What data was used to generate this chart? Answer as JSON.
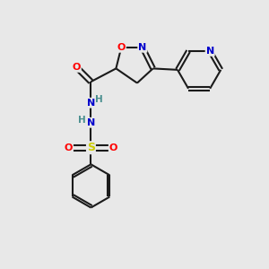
{
  "background_color": "#e8e8e8",
  "bond_color": "#1a1a1a",
  "atom_colors": {
    "O": "#ff0000",
    "N": "#0000cc",
    "S": "#cccc00",
    "C": "#1a1a1a",
    "H": "#4a8f8f"
  },
  "figsize": [
    3.0,
    3.0
  ],
  "dpi": 100
}
